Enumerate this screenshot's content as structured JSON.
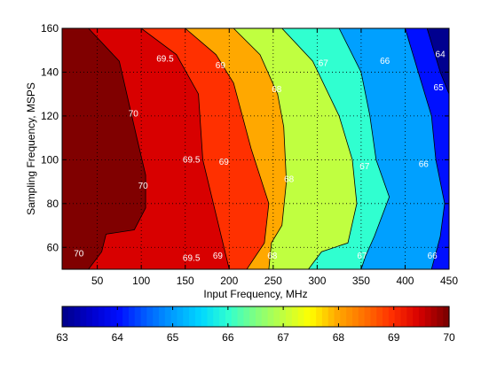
{
  "chart_data": {
    "type": "contour",
    "xlabel": "Input Frequency, MHz",
    "ylabel": "Sampling Frequency, MSPS",
    "xlim": [
      10,
      450
    ],
    "ylim": [
      50,
      160
    ],
    "xticks": [
      "50",
      "100",
      "150",
      "200",
      "250",
      "300",
      "350",
      "400",
      "450"
    ],
    "yticks": [
      "60",
      "80",
      "100",
      "120",
      "140",
      "160"
    ],
    "grid": true,
    "colorbar": {
      "position": "bottom",
      "range": [
        63,
        70
      ],
      "ticks": [
        "63",
        "64",
        "65",
        "66",
        "67",
        "68",
        "69",
        "70"
      ]
    },
    "contour_levels": [
      {
        "value": 70,
        "label": "70",
        "points": [
          [
            10,
            50
          ],
          [
            10,
            160
          ],
          [
            40,
            160
          ],
          [
            75,
            145
          ],
          [
            95,
            110
          ],
          [
            105,
            93
          ],
          [
            105,
            78
          ],
          [
            92,
            68
          ],
          [
            60,
            66
          ],
          [
            55,
            58
          ],
          [
            40,
            50
          ]
        ]
      },
      {
        "value": 69.5,
        "label": "69.5",
        "points": [
          [
            10,
            50
          ],
          [
            10,
            160
          ],
          [
            100,
            160
          ],
          [
            140,
            148
          ],
          [
            165,
            130
          ],
          [
            170,
            100
          ],
          [
            185,
            75
          ],
          [
            200,
            50
          ]
        ]
      },
      {
        "value": 69,
        "label": "69",
        "points": [
          [
            10,
            50
          ],
          [
            10,
            160
          ],
          [
            150,
            160
          ],
          [
            185,
            148
          ],
          [
            205,
            135
          ],
          [
            225,
            105
          ],
          [
            245,
            80
          ],
          [
            240,
            62
          ],
          [
            220,
            50
          ]
        ]
      },
      {
        "value": 68,
        "label": "68",
        "points": [
          [
            10,
            50
          ],
          [
            10,
            160
          ],
          [
            205,
            160
          ],
          [
            235,
            148
          ],
          [
            255,
            130
          ],
          [
            262,
            115
          ],
          [
            265,
            90
          ],
          [
            260,
            70
          ],
          [
            248,
            62
          ],
          [
            245,
            50
          ]
        ]
      },
      {
        "value": 67,
        "label": "67",
        "points": [
          [
            10,
            50
          ],
          [
            10,
            160
          ],
          [
            260,
            160
          ],
          [
            295,
            145
          ],
          [
            325,
            120
          ],
          [
            340,
            100
          ],
          [
            345,
            80
          ],
          [
            335,
            62
          ],
          [
            305,
            58
          ],
          [
            290,
            50
          ]
        ]
      },
      {
        "value": 66,
        "label": "66",
        "points": [
          [
            10,
            50
          ],
          [
            10,
            160
          ],
          [
            325,
            160
          ],
          [
            350,
            140
          ],
          [
            360,
            120
          ],
          [
            367,
            100
          ],
          [
            382,
            83
          ],
          [
            365,
            65
          ],
          [
            355,
            56
          ],
          [
            350,
            50
          ]
        ]
      },
      {
        "value": 65,
        "label": "65",
        "points": [
          [
            10,
            50
          ],
          [
            10,
            160
          ],
          [
            400,
            160
          ],
          [
            415,
            140
          ],
          [
            430,
            120
          ],
          [
            435,
            100
          ],
          [
            445,
            80
          ],
          [
            440,
            65
          ],
          [
            430,
            50
          ]
        ]
      },
      {
        "value": 64,
        "label": "64",
        "points": [
          [
            10,
            50
          ],
          [
            10,
            160
          ],
          [
            425,
            160
          ],
          [
            440,
            140
          ],
          [
            455,
            125
          ],
          [
            455,
            70
          ],
          [
            450,
            50
          ]
        ]
      }
    ],
    "inline_labels": [
      {
        "text": "70",
        "x": 91,
        "y": 121
      },
      {
        "text": "70",
        "x": 102,
        "y": 88
      },
      {
        "text": "70",
        "x": 29,
        "y": 57
      },
      {
        "text": "69.5",
        "x": 127,
        "y": 146
      },
      {
        "text": "69.5",
        "x": 157,
        "y": 100
      },
      {
        "text": "69.5",
        "x": 157,
        "y": 55
      },
      {
        "text": "69",
        "x": 190,
        "y": 143
      },
      {
        "text": "69",
        "x": 194,
        "y": 99
      },
      {
        "text": "69",
        "x": 187,
        "y": 56
      },
      {
        "text": "68",
        "x": 254,
        "y": 132
      },
      {
        "text": "68",
        "x": 268,
        "y": 91
      },
      {
        "text": "68",
        "x": 249,
        "y": 56
      },
      {
        "text": "67",
        "x": 307,
        "y": 144
      },
      {
        "text": "67",
        "x": 354,
        "y": 97
      },
      {
        "text": "67",
        "x": 351,
        "y": 56
      },
      {
        "text": "66",
        "x": 377,
        "y": 145
      },
      {
        "text": "66",
        "x": 421,
        "y": 98
      },
      {
        "text": "66",
        "x": 431,
        "y": 56
      },
      {
        "text": "65",
        "x": 438,
        "y": 133
      },
      {
        "text": "64",
        "x": 440,
        "y": 148
      }
    ],
    "colors": {
      "63": "#00008f",
      "63.5": "#0000cf",
      "64": "#0010ff",
      "64.5": "#0060ff",
      "65": "#00a0ff",
      "65.5": "#00d8ff",
      "66": "#30ffd0",
      "66.5": "#80ff80",
      "67": "#c0ff40",
      "67.5": "#ffff00",
      "68": "#ffa800",
      "68.5": "#ff7000",
      "69": "#ff3000",
      "69.5": "#d80000",
      "70": "#800000"
    }
  }
}
